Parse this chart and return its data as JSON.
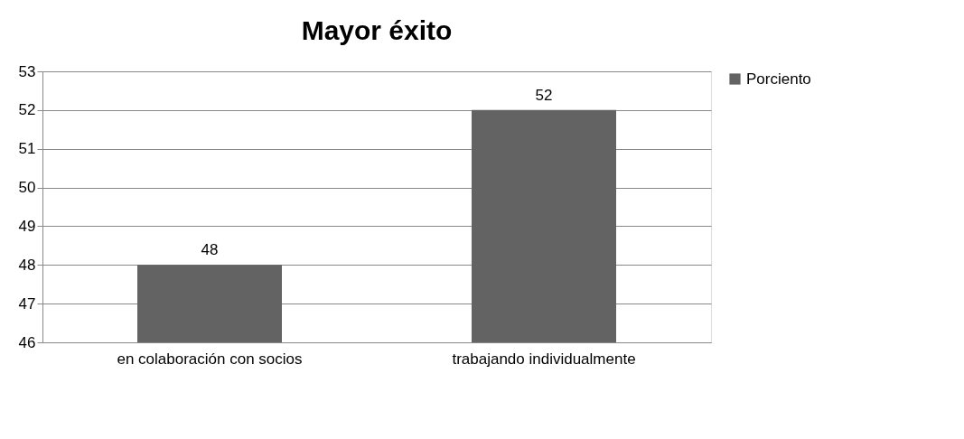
{
  "chart_data": {
    "type": "bar",
    "title": "Mayor éxito",
    "categories": [
      "en colaboración con socios",
      "trabajando individualmente"
    ],
    "series": [
      {
        "name": "Porciento",
        "color": "#636363",
        "values": [
          48,
          52
        ]
      }
    ],
    "ylim": [
      46,
      53
    ],
    "yticks": [
      46,
      47,
      48,
      49,
      50,
      51,
      52,
      53
    ],
    "grid": "y",
    "legend": "right",
    "data_labels": true
  }
}
